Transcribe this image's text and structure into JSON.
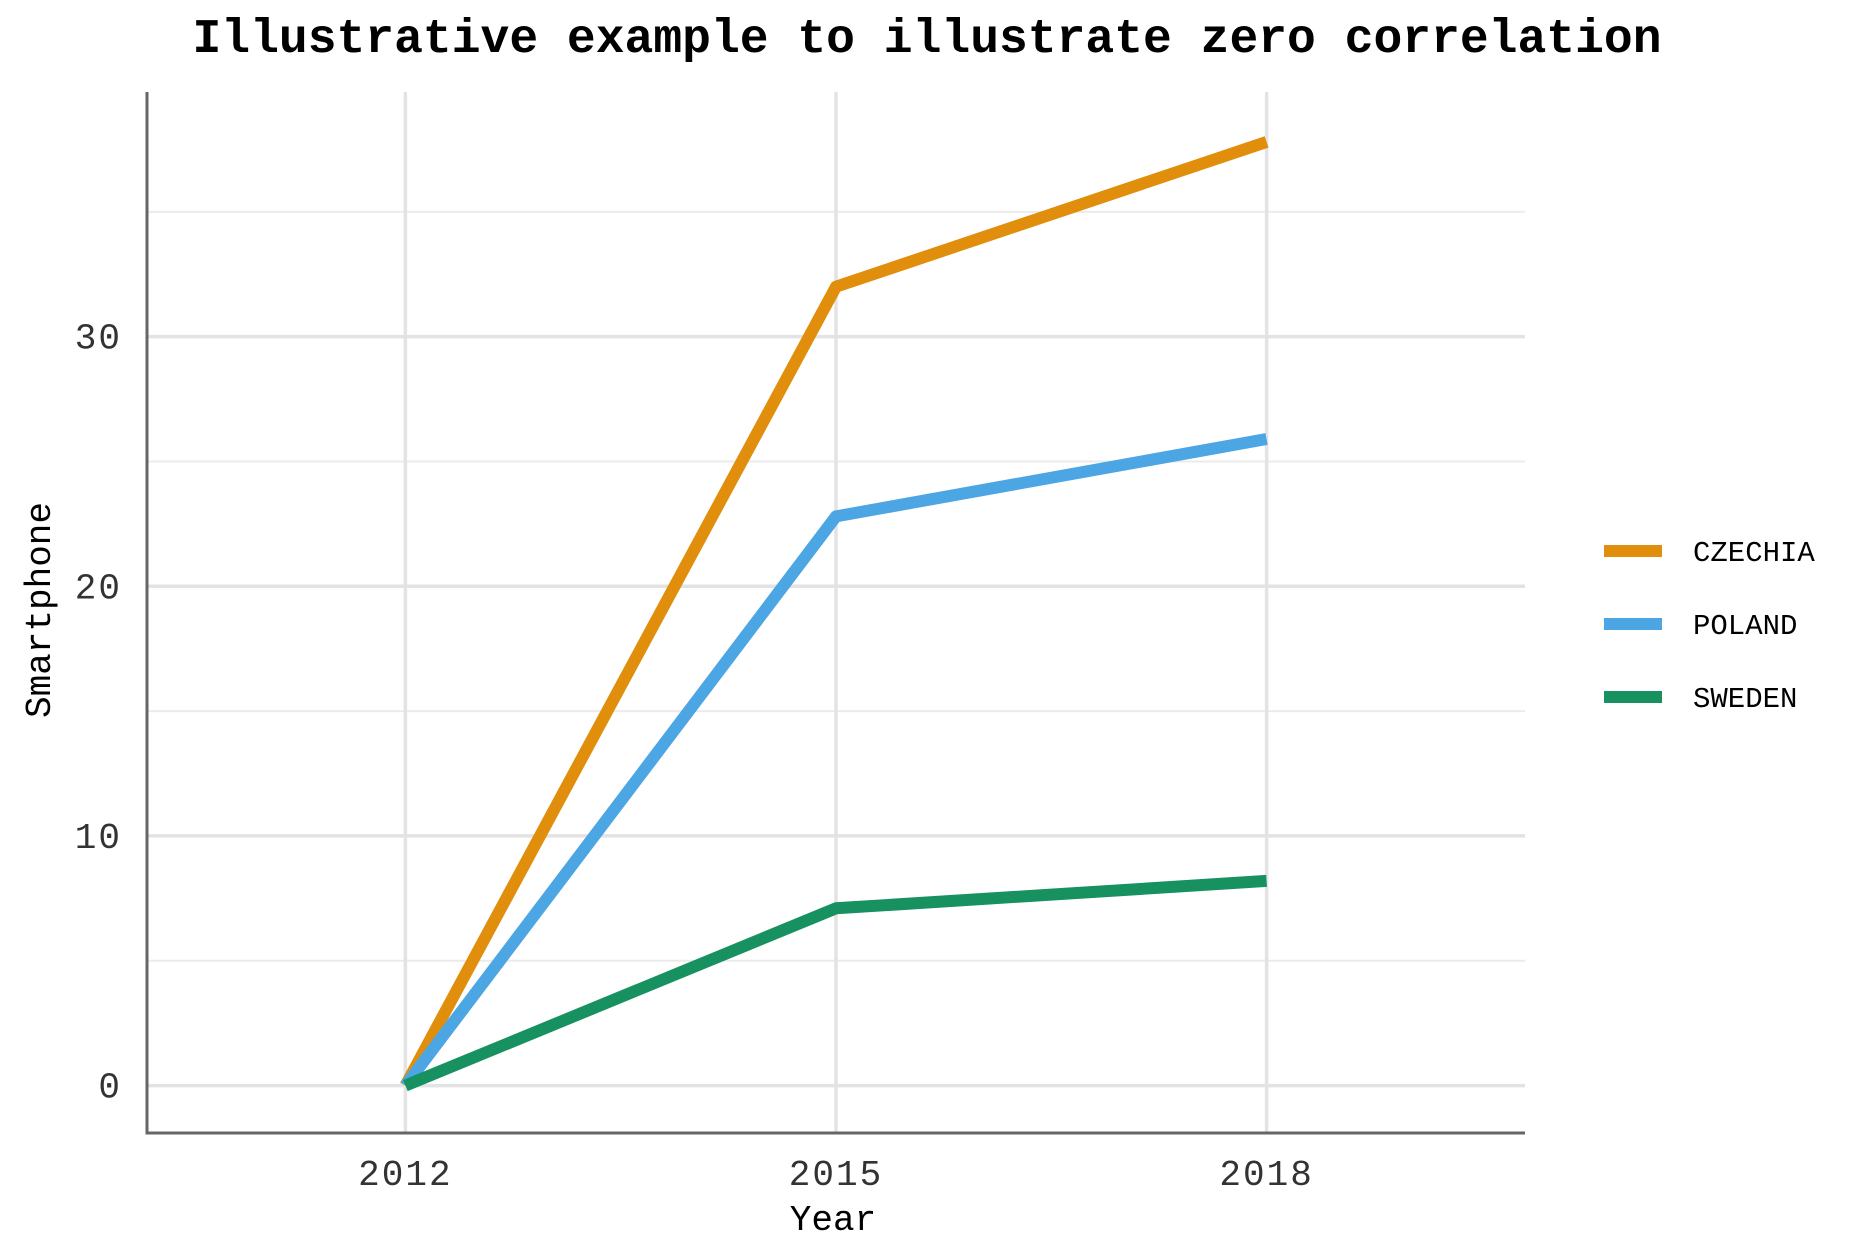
{
  "chart_data": {
    "type": "line",
    "title": "Illustrative example to illustrate zero correlation",
    "xlabel": "Year",
    "ylabel": "Smartphone",
    "x": [
      2012,
      2015,
      2018
    ],
    "x_ticks": [
      "2012",
      "2015",
      "2018"
    ],
    "xlim": [
      2010.2,
      2019.8
    ],
    "y_ticks": [
      "0",
      "10",
      "20",
      "30"
    ],
    "ylim": [
      -1.9,
      39.8
    ],
    "grid": true,
    "legend_position": "right",
    "series": [
      {
        "name": "CZECHIA",
        "color": "#E08E0B",
        "values": [
          0,
          32.0,
          37.8
        ]
      },
      {
        "name": "POLAND",
        "color": "#4BA6E3",
        "values": [
          0,
          22.8,
          25.9
        ]
      },
      {
        "name": "SWEDEN",
        "color": "#16915F",
        "values": [
          0,
          7.1,
          8.2
        ]
      }
    ]
  }
}
